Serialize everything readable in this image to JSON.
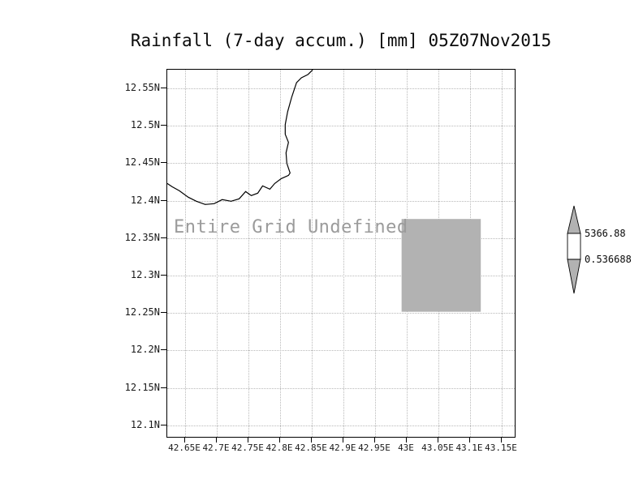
{
  "title": "Rainfall (7-day accum.) [mm] 05Z07Nov2015",
  "annotation": "Entire Grid Undefined",
  "axes": {
    "y_ticks": [
      "12.55N",
      "12.5N",
      "12.45N",
      "12.4N",
      "12.35N",
      "12.3N",
      "12.25N",
      "12.2N",
      "12.15N",
      "12.1N"
    ],
    "x_ticks": [
      "42.65E",
      "42.7E",
      "42.75E",
      "42.8E",
      "42.85E",
      "42.9E",
      "42.95E",
      "43E",
      "43.05E",
      "43.1E",
      "43.15E"
    ]
  },
  "map": {
    "undefined_region_color": "#b2b2b2",
    "coastline_color": "#000000"
  },
  "colorbar": {
    "max_label": "5366.88",
    "min_label": "0.536688",
    "triangle_color": "#b2b2b2",
    "bar_color": "#ffffff"
  },
  "chart_data": {
    "type": "heatmap",
    "title": "Rainfall (7-day accum.) [mm] 05Z07Nov2015",
    "x_tick_labels": [
      "42.65E",
      "42.7E",
      "42.75E",
      "42.8E",
      "42.85E",
      "42.9E",
      "42.95E",
      "43E",
      "43.05E",
      "43.1E",
      "43.15E"
    ],
    "y_tick_labels": [
      "12.55N",
      "12.5N",
      "12.45N",
      "12.4N",
      "12.35N",
      "12.3N",
      "12.25N",
      "12.2N",
      "12.15N",
      "12.1N"
    ],
    "values": null,
    "annotation": "Entire Grid Undefined",
    "colorbar_range": [
      0.536688,
      5366.88
    ],
    "grid": true,
    "legend_position": "right"
  }
}
